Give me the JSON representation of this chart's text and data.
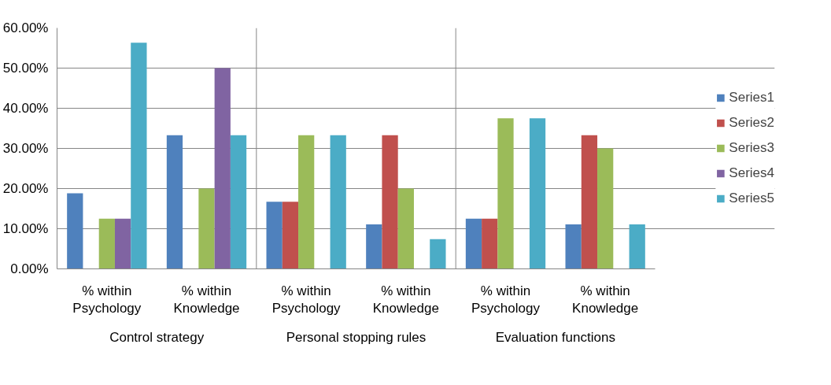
{
  "chart_data": {
    "type": "bar",
    "categories": [
      "% within Psychology",
      "% within Knowledge",
      "% within Psychology",
      "% within Knowledge",
      "% within Psychology",
      "% within Knowledge"
    ],
    "series": [
      {
        "name": "Series1",
        "color": "#4f81bd",
        "values": [
          18.8,
          33.3,
          16.7,
          11.1,
          12.5,
          11.1
        ]
      },
      {
        "name": "Series2",
        "color": "#c0504d",
        "values": [
          0,
          0,
          16.7,
          33.3,
          12.5,
          33.3
        ]
      },
      {
        "name": "Series3",
        "color": "#9bbb59",
        "values": [
          12.5,
          20,
          33.3,
          20,
          37.5,
          30
        ]
      },
      {
        "name": "Series4",
        "color": "#8064a2",
        "values": [
          12.5,
          50,
          0,
          0,
          0,
          0
        ]
      },
      {
        "name": "Series5",
        "color": "#4bacc6",
        "values": [
          56.3,
          33.3,
          33.3,
          7.4,
          37.5,
          11.1
        ]
      }
    ],
    "annotations": [
      "Control strategy",
      "Personal stopping rules",
      "Evaluation functions"
    ],
    "ylim": [
      0,
      60
    ],
    "yticks": [
      {
        "value": 0,
        "label": "0.00%"
      },
      {
        "value": 10,
        "label": "10.00%"
      },
      {
        "value": 20,
        "label": "20.00%"
      },
      {
        "value": 30,
        "label": "30.00%"
      },
      {
        "value": 40,
        "label": "40.00%"
      },
      {
        "value": 50,
        "label": "50.00%"
      },
      {
        "value": 60,
        "label": "60.00%"
      }
    ],
    "grid": "y",
    "legend": "right"
  }
}
